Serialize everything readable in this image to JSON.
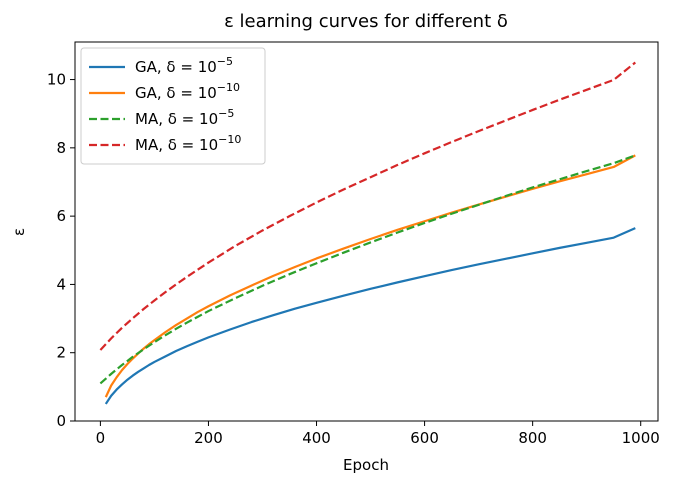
{
  "chart_data": {
    "type": "line",
    "title": "ε learning curves for different δ",
    "xlabel": "Epoch",
    "ylabel": "ε",
    "xlim": [
      -47,
      1032
    ],
    "ylim": [
      0,
      11.1
    ],
    "xticks": [
      0,
      200,
      400,
      600,
      800,
      1000
    ],
    "yticks": [
      0,
      2,
      4,
      6,
      8,
      10
    ],
    "grid": false,
    "legend_position": "upper left",
    "series": [
      {
        "name": "GA, δ=10⁻⁵",
        "legend_main": "GA, δ = 10",
        "legend_exp": "−5",
        "color": "#1f77b4",
        "style": "solid",
        "x": [
          10,
          20,
          30,
          40,
          50,
          60,
          70,
          80,
          90,
          100,
          120,
          140,
          160,
          180,
          200,
          240,
          280,
          320,
          360,
          400,
          450,
          500,
          550,
          600,
          650,
          700,
          750,
          800,
          850,
          900,
          950,
          990
        ],
        "y": [
          0.5,
          0.74,
          0.92,
          1.07,
          1.21,
          1.33,
          1.44,
          1.54,
          1.64,
          1.73,
          1.89,
          2.05,
          2.19,
          2.32,
          2.45,
          2.68,
          2.9,
          3.1,
          3.29,
          3.46,
          3.67,
          3.87,
          4.06,
          4.24,
          4.42,
          4.59,
          4.75,
          4.91,
          5.07,
          5.22,
          5.37,
          5.65
        ]
      },
      {
        "name": "GA, δ=10⁻¹⁰",
        "legend_main": "GA, δ = 10",
        "legend_exp": "−10",
        "color": "#ff7f0e",
        "style": "solid",
        "x": [
          10,
          20,
          30,
          40,
          50,
          60,
          70,
          80,
          90,
          100,
          120,
          140,
          160,
          180,
          200,
          240,
          280,
          320,
          360,
          400,
          450,
          500,
          550,
          600,
          650,
          700,
          750,
          800,
          850,
          900,
          950,
          990
        ],
        "y": [
          0.7,
          1.04,
          1.28,
          1.49,
          1.67,
          1.83,
          1.98,
          2.12,
          2.25,
          2.37,
          2.6,
          2.81,
          3.0,
          3.19,
          3.36,
          3.68,
          3.97,
          4.25,
          4.51,
          4.76,
          5.05,
          5.33,
          5.6,
          5.85,
          6.1,
          6.34,
          6.57,
          6.8,
          7.02,
          7.23,
          7.44,
          7.78
        ]
      },
      {
        "name": "MA, δ=10⁻⁵",
        "legend_main": "MA, δ = 10",
        "legend_exp": "−5",
        "color": "#2ca02c",
        "style": "dashed",
        "x": [
          0,
          20,
          40,
          60,
          80,
          100,
          120,
          140,
          160,
          180,
          200,
          250,
          300,
          350,
          400,
          450,
          500,
          550,
          600,
          650,
          700,
          750,
          800,
          850,
          900,
          950,
          990
        ],
        "y": [
          1.1,
          1.38,
          1.64,
          1.88,
          2.1,
          2.31,
          2.51,
          2.7,
          2.88,
          3.05,
          3.22,
          3.6,
          3.96,
          4.3,
          4.62,
          4.93,
          5.23,
          5.52,
          5.8,
          6.07,
          6.33,
          6.59,
          6.84,
          7.08,
          7.32,
          7.55,
          7.78
        ]
      },
      {
        "name": "MA, δ=10⁻¹⁰",
        "legend_main": "MA, δ = 10",
        "legend_exp": "−10",
        "color": "#d62728",
        "style": "dashed",
        "x": [
          0,
          20,
          40,
          60,
          80,
          100,
          120,
          140,
          160,
          180,
          200,
          250,
          300,
          350,
          400,
          450,
          500,
          550,
          600,
          650,
          700,
          750,
          800,
          850,
          900,
          950,
          990
        ],
        "y": [
          2.08,
          2.42,
          2.73,
          3.01,
          3.28,
          3.53,
          3.77,
          4.0,
          4.22,
          4.43,
          4.64,
          5.13,
          5.58,
          6.0,
          6.4,
          6.78,
          7.14,
          7.5,
          7.84,
          8.17,
          8.49,
          8.8,
          9.11,
          9.41,
          9.7,
          9.99,
          10.5
        ]
      }
    ]
  }
}
